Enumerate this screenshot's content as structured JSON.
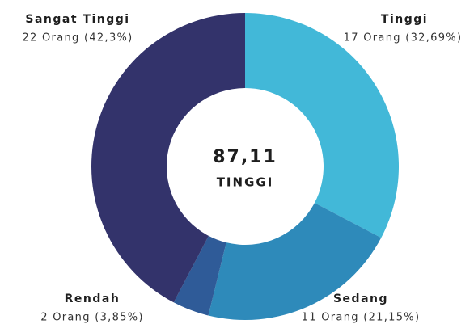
{
  "chart_data": {
    "type": "pie",
    "categories": [
      "Tinggi",
      "Sedang",
      "Rendah",
      "Sangat Tinggi"
    ],
    "values": [
      17,
      11,
      2,
      22
    ],
    "value_labels": [
      "17 Orang (32,69%)",
      "11 Orang (21,15%)",
      "2 Orang (3,85%)",
      "22 Orang (42,3%)"
    ],
    "colors": [
      "#42b8d8",
      "#2e8aba",
      "#2f5b98",
      "#33336b"
    ],
    "center_value": "87,11",
    "center_label": "TINGGI"
  }
}
